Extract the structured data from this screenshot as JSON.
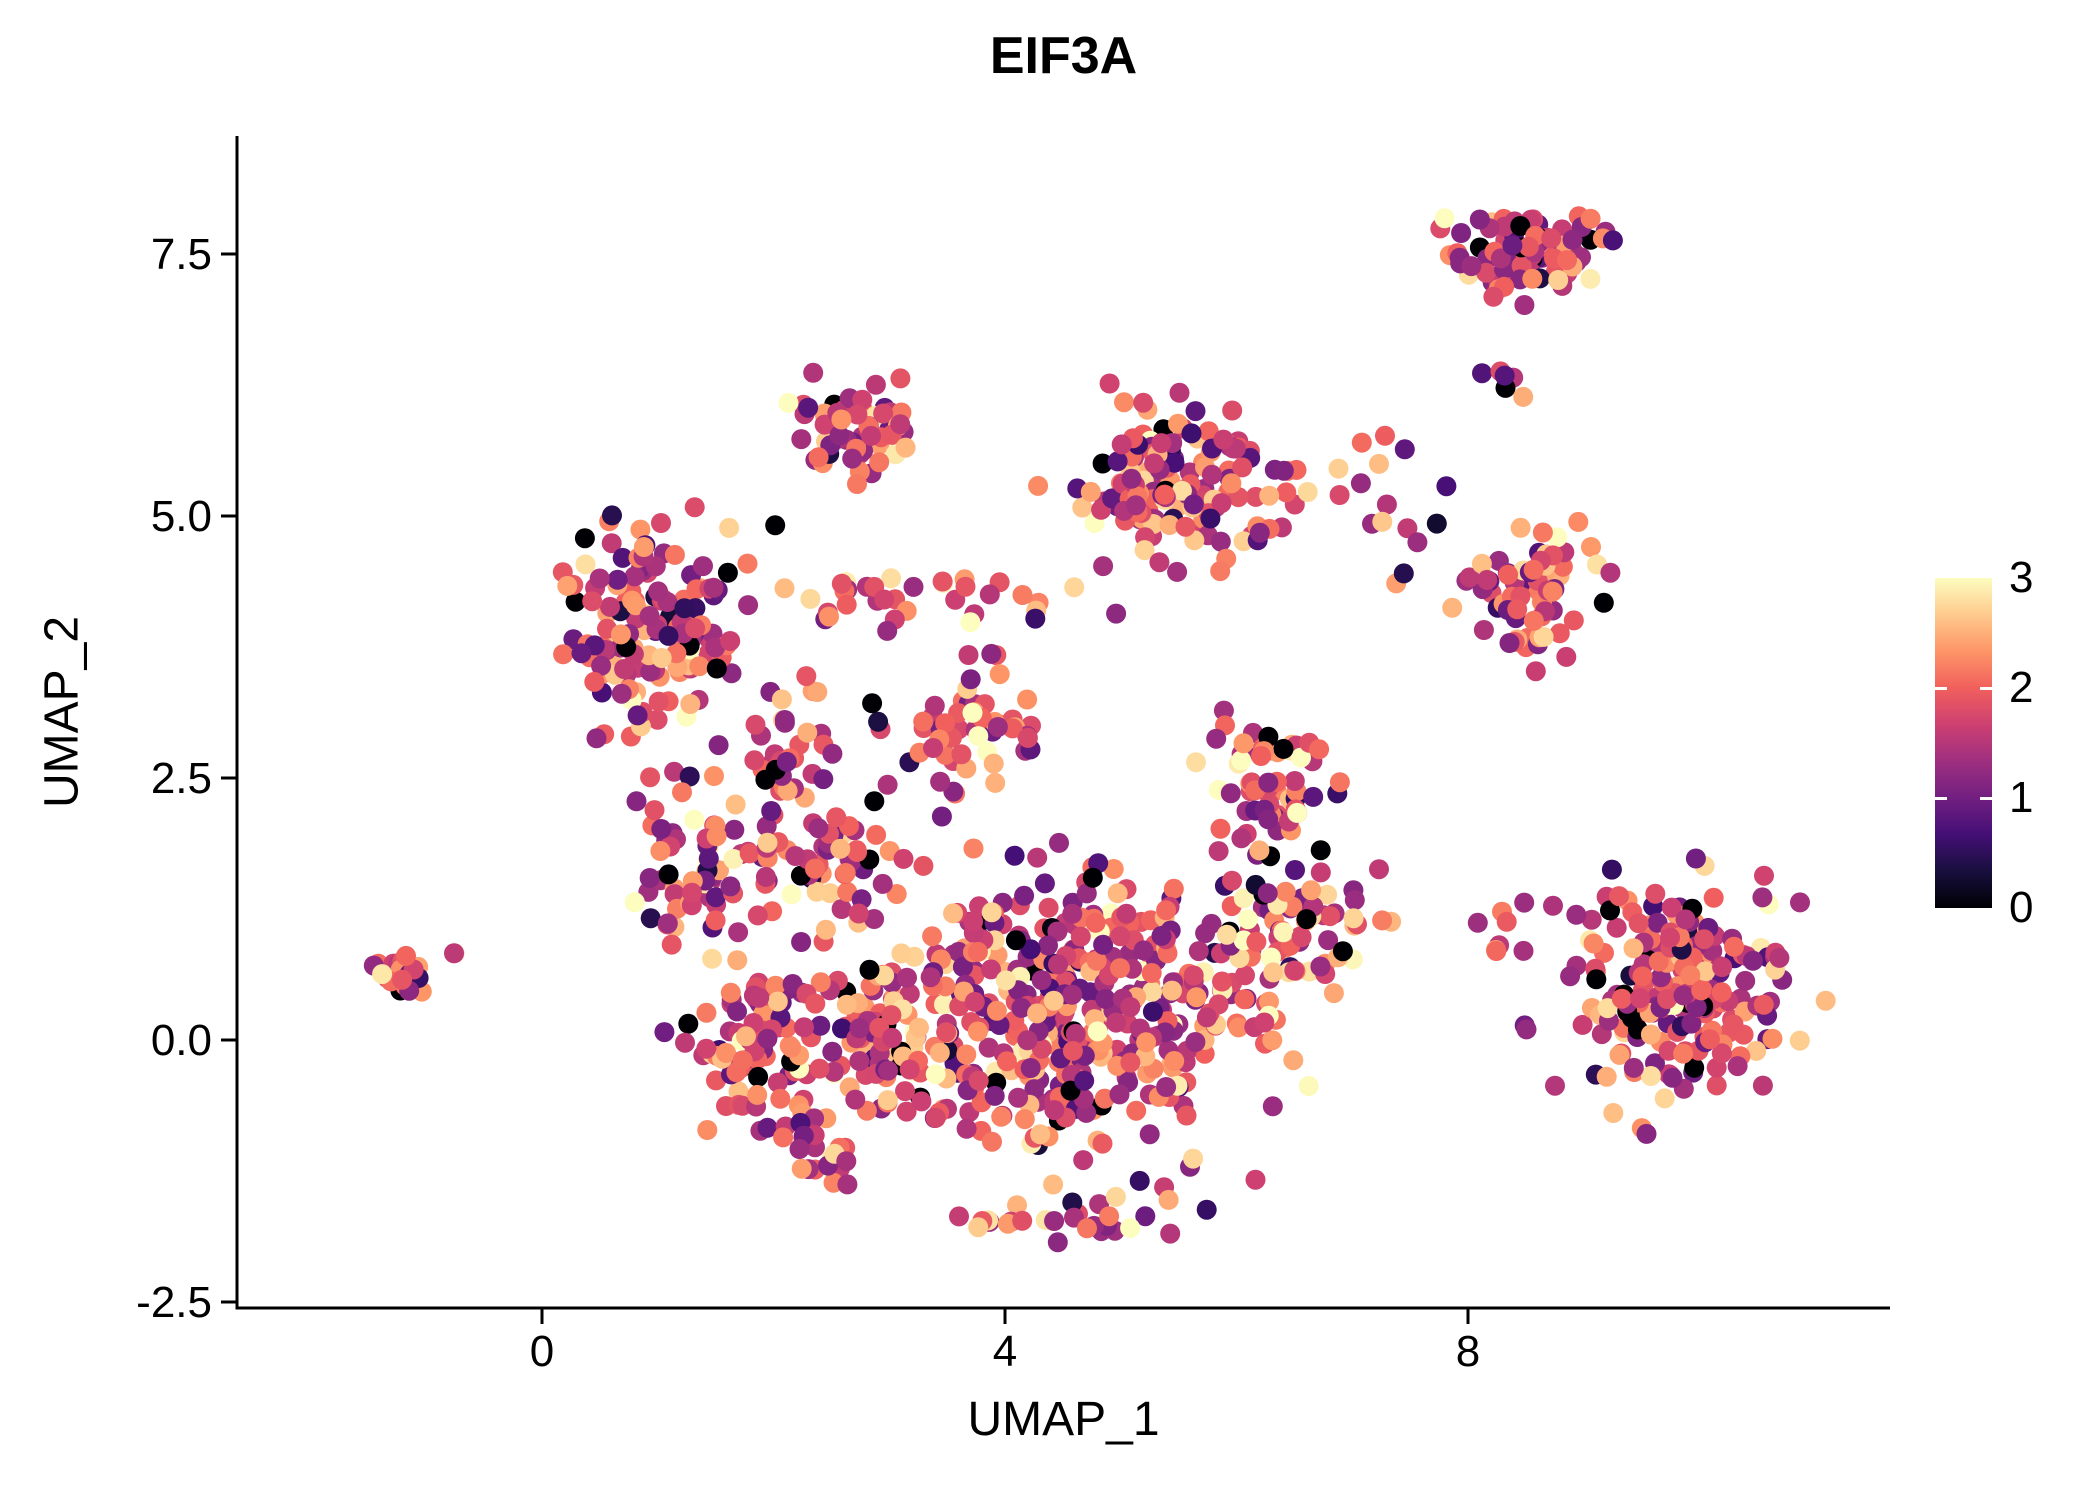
{
  "chart_data": {
    "type": "scatter",
    "title": "EIF3A",
    "xlabel": "UMAP_1",
    "ylabel": "UMAP_2",
    "x_ticks": [
      0,
      4,
      8
    ],
    "x_tick_labels": [
      "0",
      "4",
      "8"
    ],
    "y_ticks": [
      -2.5,
      0,
      2.5,
      5,
      7.5
    ],
    "y_tick_labels": [
      "-2.5",
      "0.0",
      "2.5",
      "5.0",
      "7.5"
    ],
    "xlim": [
      -2.6,
      11.6
    ],
    "ylim": [
      -2.6,
      8.6
    ],
    "grid": false,
    "background": "#ffffff",
    "legend": {
      "type": "colorbar",
      "position": "right",
      "range": [
        0,
        3
      ],
      "ticks": [
        0,
        1,
        2,
        3
      ],
      "colormap": "magma",
      "colors": [
        "#000004",
        "#180f3d",
        "#440f76",
        "#721f81",
        "#9e2f7f",
        "#cd4071",
        "#f1605d",
        "#fd9567",
        "#feca8d",
        "#fcfdbf"
      ]
    },
    "point_style": {
      "radius_px": 10,
      "opacity": 1
    },
    "seed": 42,
    "value_distribution": {
      "mean": 1.8,
      "sd": 0.6,
      "zero_fraction": 0.04,
      "min": 0,
      "max": 3
    },
    "clusters": [
      {
        "n": 30,
        "cx": -1.22,
        "cy": 0.65,
        "rx": 0.16,
        "ry": 0.13
      },
      {
        "n": 2,
        "cx": -0.78,
        "cy": 0.8,
        "rx": 0.04,
        "ry": 0.04
      },
      {
        "n": 150,
        "cx": 0.95,
        "cy": 3.9,
        "rx": 0.62,
        "ry": 0.78
      },
      {
        "n": 70,
        "cx": 1.4,
        "cy": 1.7,
        "rx": 0.5,
        "ry": 0.75
      },
      {
        "n": 60,
        "cx": 2.65,
        "cy": 5.8,
        "rx": 0.42,
        "ry": 0.38
      },
      {
        "n": 150,
        "cx": 5.5,
        "cy": 5.3,
        "rx": 0.75,
        "ry": 0.65
      },
      {
        "n": 35,
        "cx": 3.3,
        "cy": 4.2,
        "rx": 1.1,
        "ry": 0.22
      },
      {
        "n": 90,
        "cx": 8.5,
        "cy": 7.5,
        "rx": 0.55,
        "ry": 0.32
      },
      {
        "n": 6,
        "cx": 8.2,
        "cy": 6.4,
        "rx": 0.3,
        "ry": 0.4
      },
      {
        "n": 70,
        "cx": 8.55,
        "cy": 4.3,
        "rx": 0.42,
        "ry": 0.5
      },
      {
        "n": 8,
        "cx": 7.5,
        "cy": 4.9,
        "rx": 0.35,
        "ry": 0.45
      },
      {
        "n": 430,
        "cx": 4.6,
        "cy": 0.35,
        "rx": 1.45,
        "ry": 1.05
      },
      {
        "n": 60,
        "cx": 3.6,
        "cy": 2.9,
        "rx": 0.55,
        "ry": 0.5
      },
      {
        "n": 60,
        "cx": 6.3,
        "cy": 2.5,
        "rx": 0.45,
        "ry": 0.45
      },
      {
        "n": 70,
        "cx": 6.5,
        "cy": 1.1,
        "rx": 0.55,
        "ry": 0.55
      },
      {
        "n": 80,
        "cx": 3.0,
        "cy": 0.1,
        "rx": 0.55,
        "ry": 0.65
      },
      {
        "n": 90,
        "cx": 1.8,
        "cy": 0.0,
        "rx": 0.45,
        "ry": 0.6
      },
      {
        "n": 220,
        "cx": 9.8,
        "cy": 0.5,
        "rx": 0.8,
        "ry": 0.85
      },
      {
        "n": 8,
        "cx": 8.35,
        "cy": 1.2,
        "rx": 0.22,
        "ry": 0.35
      },
      {
        "n": 50,
        "cx": 2.5,
        "cy": 1.7,
        "rx": 0.5,
        "ry": 0.45
      },
      {
        "n": 35,
        "cx": 2.1,
        "cy": 2.7,
        "rx": 0.35,
        "ry": 0.45
      },
      {
        "n": 25,
        "cx": 2.3,
        "cy": -1.0,
        "rx": 0.35,
        "ry": 0.3
      },
      {
        "n": 30,
        "cx": 4.6,
        "cy": -1.7,
        "rx": 0.75,
        "ry": 0.22
      },
      {
        "n": 8,
        "cx": 7.2,
        "cy": 5.5,
        "rx": 0.35,
        "ry": 0.45
      }
    ]
  }
}
